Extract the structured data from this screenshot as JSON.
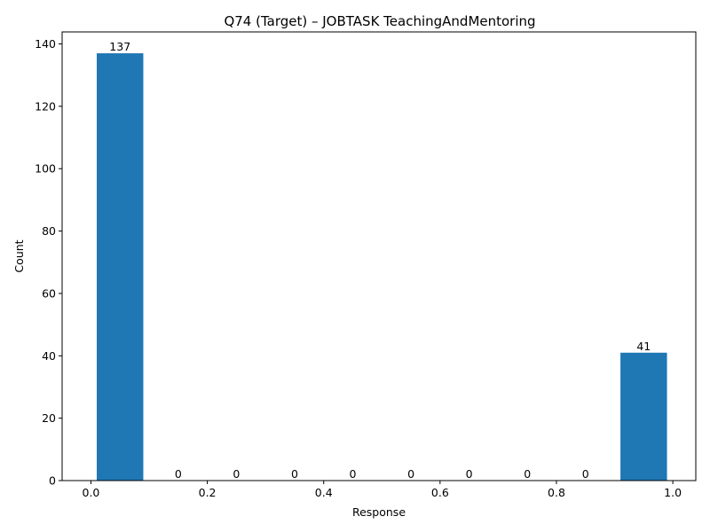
{
  "chart_data": {
    "type": "bar",
    "title": "Q74 (Target) – JOBTASK TeachingAndMentoring",
    "xlabel": "Response",
    "ylabel": "Count",
    "xlim": [
      -0.0495,
      1.0395
    ],
    "ylim": [
      0,
      143.85
    ],
    "xticks": [
      "0.0",
      "0.2",
      "0.4",
      "0.6",
      "0.8",
      "1.0"
    ],
    "yticks": [
      "0",
      "20",
      "40",
      "60",
      "80",
      "100",
      "120",
      "140"
    ],
    "bar_color": "#1f77b4",
    "bars": [
      {
        "x0": 0.01,
        "x1": 0.09,
        "value": 137,
        "label": "137"
      },
      {
        "x0": 0.11,
        "x1": 0.19,
        "value": 0,
        "label": "0"
      },
      {
        "x0": 0.21,
        "x1": 0.29,
        "value": 0,
        "label": "0"
      },
      {
        "x0": 0.31,
        "x1": 0.39,
        "value": 0,
        "label": "0"
      },
      {
        "x0": 0.41,
        "x1": 0.49,
        "value": 0,
        "label": "0"
      },
      {
        "x0": 0.51,
        "x1": 0.59,
        "value": 0,
        "label": "0"
      },
      {
        "x0": 0.61,
        "x1": 0.69,
        "value": 0,
        "label": "0"
      },
      {
        "x0": 0.71,
        "x1": 0.79,
        "value": 0,
        "label": "0"
      },
      {
        "x0": 0.81,
        "x1": 0.89,
        "value": 0,
        "label": "0"
      },
      {
        "x0": 0.91,
        "x1": 0.99,
        "value": 41,
        "label": "41"
      }
    ]
  }
}
